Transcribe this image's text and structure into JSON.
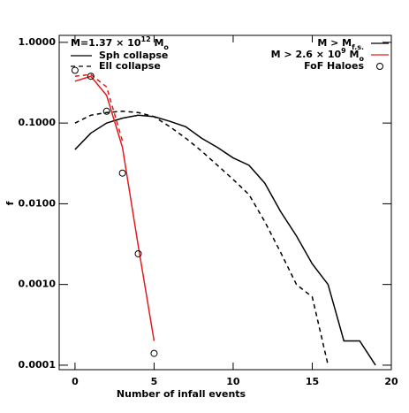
{
  "chart_data": {
    "type": "line",
    "xlabel": "Number of infall events",
    "ylabel": "f",
    "xlim": [
      -1,
      20
    ],
    "ylim": [
      8.8e-05,
      1.22
    ],
    "log_y": true,
    "xticks": [
      0,
      5,
      10,
      15,
      20
    ],
    "yticks": [
      {
        "value": 1,
        "label": "1.0000"
      },
      {
        "value": 0.1,
        "label": "0.1000"
      },
      {
        "value": 0.01,
        "label": "0.0100"
      },
      {
        "value": 0.001,
        "label": "0.0010"
      },
      {
        "value": 0.0001,
        "label": "0.0001"
      }
    ],
    "annotation": [
      "M=1.37 × 10",
      {
        "sup": "12"
      },
      " M",
      {
        "sub": "o"
      }
    ],
    "key": [
      {
        "parts": [
          "M > M",
          {
            "sub": "f.s."
          }
        ],
        "color": "#000000"
      },
      {
        "parts": [
          "M > 2.6 × 10",
          {
            "sup": "9"
          },
          " M",
          {
            "sub": "o"
          }
        ],
        "color": "#e41a1c"
      }
    ],
    "series": [
      {
        "name": "Sph collapse",
        "color": "#000000",
        "style": "solid",
        "x": [
          0,
          1,
          2,
          3,
          4,
          5,
          6,
          7,
          8,
          9,
          10,
          11,
          12,
          13,
          14,
          15,
          16,
          17,
          18,
          19
        ],
        "values": [
          0.047,
          0.075,
          0.1,
          0.115,
          0.125,
          0.12,
          0.105,
          0.09,
          0.065,
          0.05,
          0.037,
          0.03,
          0.018,
          0.008,
          0.004,
          0.0018,
          0.001,
          0.0002,
          0.0002,
          0.0001
        ]
      },
      {
        "name": "Ell collapse",
        "color": "#000000",
        "style": "dashed",
        "x": [
          0,
          1,
          2,
          3,
          4,
          5,
          6,
          7,
          8,
          9,
          10,
          11,
          12,
          13,
          14,
          15,
          16
        ],
        "values": [
          0.1,
          0.125,
          0.135,
          0.14,
          0.135,
          0.12,
          0.09,
          0.065,
          0.045,
          0.03,
          0.02,
          0.013,
          0.006,
          0.0025,
          0.001,
          0.0007,
          0.0001
        ]
      },
      {
        "color": "#e41a1c",
        "style": "solid",
        "x": [
          0,
          1,
          2,
          3,
          4,
          5
        ],
        "values": [
          0.33,
          0.38,
          0.22,
          0.05,
          0.003,
          0.0002
        ]
      },
      {
        "color": "#e41a1c",
        "style": "dashed",
        "x": [
          0,
          1,
          2,
          3
        ],
        "values": [
          0.38,
          0.4,
          0.28,
          0.06
        ]
      },
      {
        "name": "FoF Haloes",
        "color": "#000000",
        "style": "circle",
        "x": [
          0,
          1,
          2,
          3,
          4,
          5
        ],
        "values": [
          0.45,
          0.38,
          0.14,
          0.024,
          0.0024,
          0.00014
        ]
      }
    ]
  }
}
